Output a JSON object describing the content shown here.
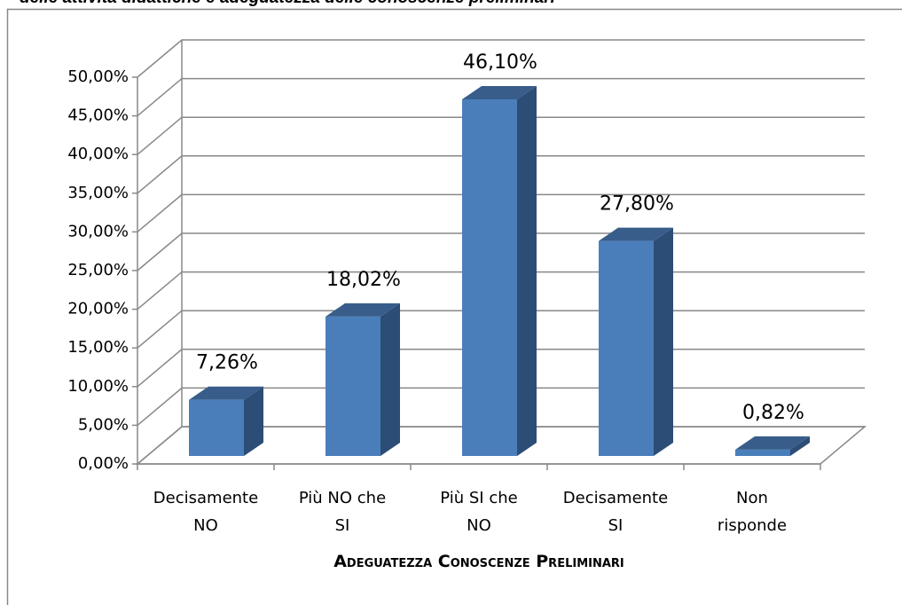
{
  "chart_data": {
    "type": "bar3d",
    "title": "delle attività didattiche e adeguatezza delle conoscenze preliminari",
    "x_label": "Adeguatezza Conoscenze Preliminari",
    "categories": [
      "Decisamente\nNO",
      "Più NO che\nSI",
      "Più SI che\nNO",
      "Decisamente\nSI",
      "Non\nrisponde"
    ],
    "values": [
      7.26,
      18.02,
      46.1,
      27.8,
      0.82
    ],
    "value_labels": [
      "7,26%",
      "18,02%",
      "46,10%",
      "27,80%",
      "0,82%"
    ],
    "color": "#4a7ebb",
    "ylim": [
      0,
      50
    ],
    "yticks": [
      {
        "value": 0,
        "label": "0,00%"
      },
      {
        "value": 5,
        "label": "5,00%"
      },
      {
        "value": 10,
        "label": "10,00%"
      },
      {
        "value": 15,
        "label": "15,00%"
      },
      {
        "value": 20,
        "label": "20,00%"
      },
      {
        "value": 25,
        "label": "25,00%"
      },
      {
        "value": 30,
        "label": "30,00%"
      },
      {
        "value": 35,
        "label": "35,00%"
      },
      {
        "value": 40,
        "label": "40,00%"
      },
      {
        "value": 45,
        "label": "45,00%"
      },
      {
        "value": 50,
        "label": "50,00%"
      }
    ],
    "grid": true
  }
}
